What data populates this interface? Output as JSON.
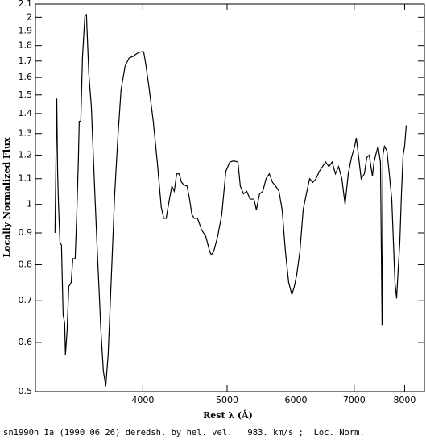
{
  "chart_data": {
    "type": "line",
    "xlabel": "Rest λ (Å)",
    "ylabel": "Locally Normalized Flux",
    "footer": "sn1990n Ia (1990 06 26) deredsh. by hel. vel.   983. km/s ;  Loc. Norm.",
    "xscale": "log",
    "yscale": "log",
    "color": "#000000",
    "xlim": [
      3010,
      8430
    ],
    "ylim": [
      0.5,
      2.1
    ],
    "xticks": [
      4000,
      5000,
      6000,
      7000,
      8000
    ],
    "yticks": [
      0.5,
      0.6,
      0.7,
      0.8,
      0.9,
      1,
      1.1,
      1.2,
      1.3,
      1.4,
      1.5,
      1.6,
      1.7,
      1.8,
      1.9,
      2,
      2.1
    ],
    "x": [
      3170,
      3185,
      3192,
      3199,
      3212,
      3225,
      3239,
      3252,
      3259,
      3273,
      3288,
      3309,
      3323,
      3344,
      3358,
      3372,
      3380,
      3394,
      3409,
      3431,
      3445,
      3467,
      3490,
      3520,
      3542,
      3580,
      3603,
      3626,
      3649,
      3681,
      3713,
      3744,
      3776,
      3817,
      3858,
      3899,
      3941,
      3983,
      4009,
      4034,
      4069,
      4112,
      4156,
      4200,
      4228,
      4255,
      4292,
      4320,
      4347,
      4375,
      4403,
      4432,
      4460,
      4498,
      4527,
      4555,
      4584,
      4623,
      4674,
      4724,
      4775,
      4795,
      4826,
      4878,
      4930,
      4983,
      5036,
      5090,
      5145,
      5178,
      5222,
      5267,
      5312,
      5369,
      5403,
      5449,
      5496,
      5543,
      5591,
      5639,
      5687,
      5736,
      5785,
      5835,
      5885,
      5936,
      5974,
      6012,
      6063,
      6115,
      6168,
      6221,
      6274,
      6328,
      6382,
      6436,
      6491,
      6547,
      6603,
      6660,
      6717,
      6775,
      6833,
      6891,
      6950,
      7009,
      7039,
      7069,
      7130,
      7191,
      7237,
      7284,
      7346,
      7377,
      7409,
      7456,
      7504,
      7536,
      7552,
      7584,
      7633,
      7682,
      7732,
      7798,
      7832,
      7866,
      7899,
      7933,
      7967,
      8000,
      8034
    ],
    "values": [
      0.9,
      1.48,
      1.13,
      1.01,
      0.87,
      0.86,
      0.665,
      0.645,
      0.573,
      0.626,
      0.738,
      0.749,
      0.818,
      0.818,
      0.963,
      1.17,
      1.36,
      1.36,
      1.72,
      2.01,
      2.02,
      1.62,
      1.44,
      1.07,
      0.87,
      0.626,
      0.54,
      0.51,
      0.573,
      0.771,
      1.04,
      1.28,
      1.53,
      1.67,
      1.72,
      1.73,
      1.75,
      1.76,
      1.76,
      1.67,
      1.53,
      1.36,
      1.17,
      0.99,
      0.95,
      0.95,
      1.02,
      1.07,
      1.05,
      1.12,
      1.12,
      1.085,
      1.075,
      1.07,
      1.02,
      0.963,
      0.95,
      0.95,
      0.91,
      0.89,
      0.84,
      0.83,
      0.84,
      0.89,
      0.963,
      1.13,
      1.17,
      1.175,
      1.17,
      1.07,
      1.04,
      1.05,
      1.02,
      1.02,
      0.98,
      1.04,
      1.05,
      1.1,
      1.12,
      1.085,
      1.07,
      1.05,
      0.98,
      0.84,
      0.749,
      0.716,
      0.738,
      0.771,
      0.84,
      0.98,
      1.04,
      1.1,
      1.085,
      1.1,
      1.13,
      1.15,
      1.17,
      1.15,
      1.17,
      1.12,
      1.15,
      1.1,
      1.0,
      1.12,
      1.19,
      1.24,
      1.28,
      1.22,
      1.1,
      1.12,
      1.19,
      1.2,
      1.11,
      1.17,
      1.2,
      1.24,
      1.17,
      0.64,
      1.2,
      1.24,
      1.22,
      1.12,
      1.02,
      0.749,
      0.706,
      0.79,
      0.87,
      1.04,
      1.2,
      1.24,
      1.34
    ]
  }
}
